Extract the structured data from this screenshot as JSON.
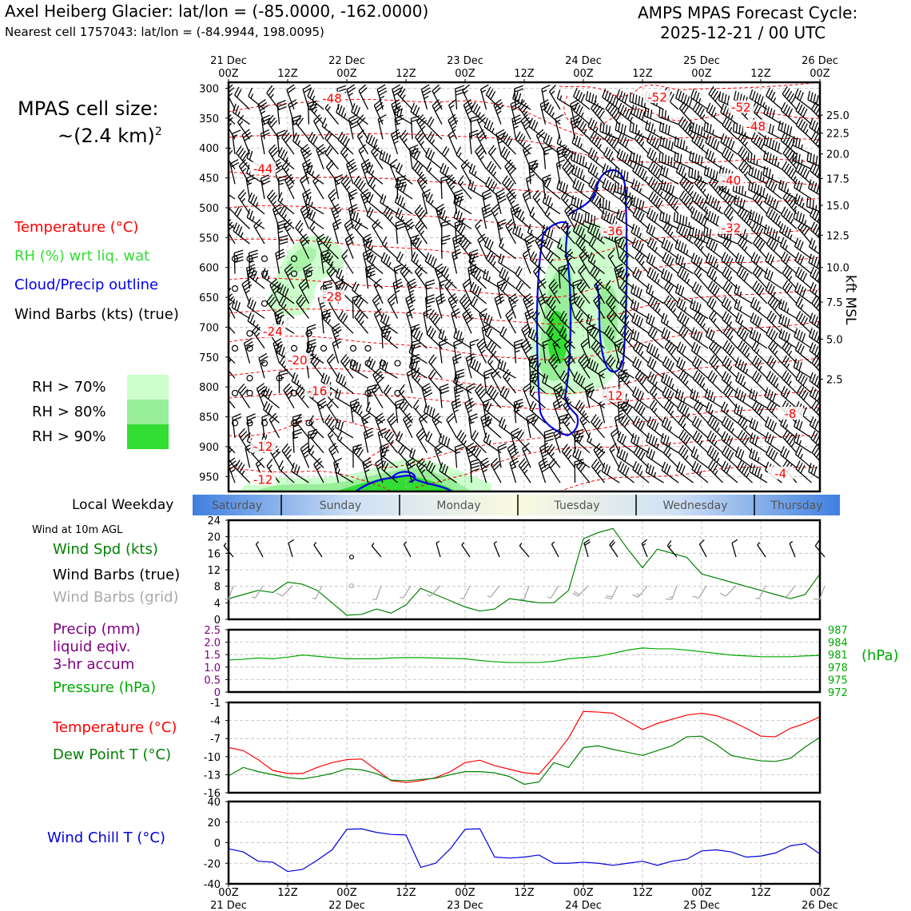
{
  "header": {
    "title_left": "Axel Heiberg Glacier: lat/lon = (-85.0000, -162.0000)",
    "subtitle_left": "Nearest cell 1757043: lat/lon = (-84.9944, 198.0095)",
    "title_right_1": "AMPS MPAS Forecast Cycle:",
    "title_right_2": "2025-12-21 / 00 UTC"
  },
  "cell_size": {
    "line1": "MPAS cell size:",
    "line2": "~(2.4 km)",
    "sup": "2"
  },
  "legend": {
    "temperature": "Temperature (°C)",
    "rh": "RH (%) wrt liq. wat",
    "cloud": "Cloud/Precip outline",
    "wind": "Wind Barbs (kts) (true)",
    "rh70": "RH > 70%",
    "rh80": "RH > 80%",
    "rh90": "RH > 90%"
  },
  "colors": {
    "temp": "#ff0000",
    "rh70": "#ccffcc",
    "rh80": "#99ee99",
    "rh90": "#33dd33",
    "cloud": "#0000ee",
    "dew": "#008000",
    "pressure": "#00aa00",
    "precip": "#800080",
    "chill": "#0000dd",
    "grid_barb": "#aaaaaa"
  },
  "time_axis": {
    "top_ticks": [
      {
        "t": 0,
        "day": "21 Dec",
        "hr": "00Z"
      },
      {
        "t": 12,
        "day": "",
        "hr": "12Z"
      },
      {
        "t": 24,
        "day": "22 Dec",
        "hr": "00Z"
      },
      {
        "t": 36,
        "day": "",
        "hr": "12Z"
      },
      {
        "t": 48,
        "day": "23 Dec",
        "hr": "00Z"
      },
      {
        "t": 60,
        "day": "",
        "hr": "12Z"
      },
      {
        "t": 72,
        "day": "24 Dec",
        "hr": "00Z"
      },
      {
        "t": 84,
        "day": "",
        "hr": "12Z"
      },
      {
        "t": 96,
        "day": "25 Dec",
        "hr": "00Z"
      },
      {
        "t": 108,
        "day": "",
        "hr": "12Z"
      },
      {
        "t": 120,
        "day": "26 Dec",
        "hr": "00Z"
      }
    ],
    "range_hours": [
      0,
      120
    ]
  },
  "weekday": {
    "label": "Local Weekday",
    "days": [
      "Saturday",
      "Sunday",
      "Monday",
      "Tuesday",
      "Wednesday",
      "Thursday"
    ]
  },
  "chart_data": [
    {
      "type": "heatmap",
      "name": "Vertical cross-section",
      "y_axis": {
        "label_left": "",
        "ticks": [
          300,
          350,
          400,
          450,
          500,
          550,
          600,
          650,
          700,
          750,
          800,
          850,
          900,
          950
        ],
        "ylim": [
          975,
          290
        ]
      },
      "y_axis_right": {
        "label": "kft MSL",
        "ticks": [
          {
            "p": 345,
            "v": "25.0"
          },
          {
            "p": 375,
            "v": "22.5"
          },
          {
            "p": 410,
            "v": "20.0"
          },
          {
            "p": 451,
            "v": "17.5"
          },
          {
            "p": 496,
            "v": "15.0"
          },
          {
            "p": 546,
            "v": "12.5"
          },
          {
            "p": 600,
            "v": "10.0"
          },
          {
            "p": 658,
            "v": "7.5"
          },
          {
            "p": 720,
            "v": "5.0"
          },
          {
            "p": 787,
            "v": "2.5"
          }
        ]
      },
      "temperature_labels": [
        {
          "t": 21,
          "p": 320,
          "v": "-48"
        },
        {
          "t": 87,
          "p": 318,
          "v": "-52"
        },
        {
          "t": 104,
          "p": 335,
          "v": "-52"
        },
        {
          "t": 107,
          "p": 367,
          "v": "-48"
        },
        {
          "t": 7,
          "p": 438,
          "v": "-44"
        },
        {
          "t": 102,
          "p": 457,
          "v": "-40"
        },
        {
          "t": 78,
          "p": 542,
          "v": "-36"
        },
        {
          "t": 102,
          "p": 537,
          "v": "-32"
        },
        {
          "t": 21,
          "p": 652,
          "v": "-28"
        },
        {
          "t": 9,
          "p": 710,
          "v": "-24"
        },
        {
          "t": 14,
          "p": 758,
          "v": "-20"
        },
        {
          "t": 18,
          "p": 810,
          "v": "-16"
        },
        {
          "t": 78,
          "p": 818,
          "v": "-12"
        },
        {
          "t": 114,
          "p": 848,
          "v": "-8"
        },
        {
          "t": 7,
          "p": 903,
          "v": "-12"
        },
        {
          "t": 7,
          "p": 958,
          "v": "-12"
        },
        {
          "t": 112,
          "p": 948,
          "v": "-4"
        }
      ],
      "rh_levels": [
        "> 70%",
        "> 80%",
        "> 90%"
      ]
    },
    {
      "type": "line",
      "name": "Wind at 10m AGL",
      "title": "Wind at 10m AGL",
      "series_label_speed": "Wind Spd (kts)",
      "series_label_barbs": "Wind Barbs (true)",
      "series_label_grid": "Wind Barbs (grid)",
      "ylim": [
        0,
        24
      ],
      "yticks": [
        0,
        4,
        8,
        12,
        16,
        20,
        24
      ],
      "x": [
        0,
        3,
        6,
        9,
        12,
        15,
        18,
        21,
        24,
        27,
        30,
        33,
        36,
        39,
        42,
        45,
        48,
        51,
        54,
        57,
        60,
        63,
        66,
        69,
        72,
        75,
        78,
        81,
        84,
        87,
        90,
        93,
        96,
        99,
        102,
        105,
        108,
        111,
        114,
        117,
        120
      ],
      "values": [
        5,
        6,
        7,
        6.5,
        9,
        8.5,
        7,
        4,
        1,
        1.2,
        2.5,
        1.5,
        3.5,
        7.5,
        6,
        4.5,
        3,
        2,
        2.5,
        5,
        4.5,
        4,
        4,
        7,
        19.5,
        21,
        22,
        17,
        12.5,
        17,
        16,
        15,
        11,
        10,
        9,
        8,
        7,
        6,
        5,
        6,
        11
      ]
    },
    {
      "type": "line",
      "name": "Precip and Pressure",
      "precip_label": "Precip (mm)",
      "precip_label2": "liquid eqiv.",
      "precip_label3": "3-hr accum",
      "pressure_label": "Pressure (hPa)",
      "pressure_unit": "(hPa)",
      "precip_ticks": [
        "2.5",
        "2.0",
        "1.5",
        "1.0",
        "0.5",
        "0"
      ],
      "pressure_ticks": [
        "987",
        "984",
        "981",
        "978",
        "975",
        "972"
      ],
      "ylim": [
        972,
        987
      ],
      "x": [
        0,
        3,
        6,
        9,
        12,
        15,
        18,
        21,
        24,
        27,
        30,
        33,
        36,
        39,
        42,
        45,
        48,
        51,
        54,
        57,
        60,
        63,
        66,
        69,
        72,
        75,
        78,
        81,
        84,
        87,
        90,
        93,
        96,
        99,
        102,
        105,
        108,
        111,
        114,
        117,
        120
      ],
      "values": [
        979.7,
        979.9,
        980.2,
        980,
        980.4,
        980.9,
        980.6,
        980.3,
        980,
        980,
        980,
        980.2,
        980.3,
        980.3,
        980.2,
        980.1,
        980,
        979.6,
        979.3,
        979.1,
        979.1,
        979.1,
        979.4,
        980,
        980.3,
        980.6,
        981.3,
        982.1,
        982.6,
        982.4,
        982.4,
        982.1,
        981.7,
        981.3,
        980.9,
        980.7,
        980.5,
        980.5,
        980.5,
        980.7,
        980.8
      ]
    },
    {
      "type": "line",
      "name": "Temperature and Dew Point",
      "temp_label": "Temperature (°C)",
      "dew_label": "Dew Point T (°C)",
      "ylim": [
        -16,
        -1
      ],
      "yticks": [
        -1,
        -4,
        -7,
        -10,
        -13,
        -16
      ],
      "x": [
        0,
        3,
        6,
        9,
        12,
        15,
        18,
        21,
        24,
        27,
        30,
        33,
        36,
        39,
        42,
        45,
        48,
        51,
        54,
        57,
        60,
        63,
        66,
        69,
        72,
        75,
        78,
        81,
        84,
        87,
        90,
        93,
        96,
        99,
        102,
        105,
        108,
        111,
        114,
        117,
        120
      ],
      "series": [
        {
          "name": "Temperature",
          "values": [
            -8.5,
            -9,
            -10.5,
            -12.3,
            -12.8,
            -12.8,
            -11.8,
            -11,
            -10.5,
            -10.4,
            -12.2,
            -14,
            -14.3,
            -14,
            -13.5,
            -12.5,
            -11,
            -10.6,
            -11.5,
            -12.1,
            -12.7,
            -12.9,
            -10.1,
            -6.9,
            -2.5,
            -2.6,
            -2.8,
            -4.1,
            -5.5,
            -4.5,
            -3.8,
            -3.1,
            -2.8,
            -3.2,
            -4.1,
            -5.3,
            -6.6,
            -6.7,
            -5.3,
            -4.5,
            -3.4
          ]
        },
        {
          "name": "Dew Point",
          "values": [
            -13.2,
            -11.8,
            -12.5,
            -13,
            -13.5,
            -13.7,
            -13.3,
            -12.8,
            -12,
            -12.2,
            -12.8,
            -13.9,
            -14,
            -13.8,
            -13.6,
            -13,
            -12.5,
            -12.5,
            -12.7,
            -13.3,
            -14.6,
            -14.2,
            -11,
            -11.8,
            -8.5,
            -8.2,
            -8.8,
            -9.3,
            -9.8,
            -9,
            -8.2,
            -6.7,
            -6.6,
            -8,
            -9.8,
            -10.3,
            -10.7,
            -10.8,
            -10.3,
            -8.4,
            -6.8
          ]
        }
      ]
    },
    {
      "type": "line",
      "name": "Wind Chill",
      "chill_label": "Wind Chill T (°C)",
      "ylim": [
        -40,
        40
      ],
      "yticks": [
        40,
        20,
        0,
        -20,
        -40
      ],
      "x": [
        0,
        3,
        6,
        9,
        12,
        15,
        18,
        21,
        24,
        27,
        30,
        33,
        36,
        39,
        42,
        45,
        48,
        51,
        54,
        57,
        60,
        63,
        66,
        69,
        72,
        75,
        78,
        81,
        84,
        87,
        90,
        93,
        96,
        99,
        102,
        105,
        108,
        111,
        114,
        117,
        120
      ],
      "values": [
        -6,
        -9,
        -18,
        -19,
        -28,
        -26,
        -17,
        -7,
        13,
        13.5,
        10,
        8,
        7.5,
        -24,
        -20,
        -6,
        13,
        13.5,
        -14,
        -15,
        -14,
        -12,
        -20,
        -20,
        -19,
        -20,
        -22,
        -20,
        -18,
        -22,
        -18,
        -16,
        -8,
        -7,
        -9,
        -14,
        -13,
        -10,
        -3,
        -1,
        -11
      ]
    }
  ],
  "bottom_axis": {
    "ticks": [
      {
        "t": 0,
        "hr": "00Z",
        "day": "21 Dec"
      },
      {
        "t": 12,
        "hr": "12Z",
        "day": ""
      },
      {
        "t": 24,
        "hr": "00Z",
        "day": "22 Dec"
      },
      {
        "t": 36,
        "hr": "12Z",
        "day": ""
      },
      {
        "t": 48,
        "hr": "00Z",
        "day": "23 Dec"
      },
      {
        "t": 60,
        "hr": "12Z",
        "day": ""
      },
      {
        "t": 72,
        "hr": "00Z",
        "day": "24 Dec"
      },
      {
        "t": 84,
        "hr": "12Z",
        "day": ""
      },
      {
        "t": 96,
        "hr": "00Z",
        "day": "25 Dec"
      },
      {
        "t": 108,
        "hr": "12Z",
        "day": ""
      },
      {
        "t": 120,
        "hr": "00Z",
        "day": "26 Dec"
      }
    ]
  }
}
